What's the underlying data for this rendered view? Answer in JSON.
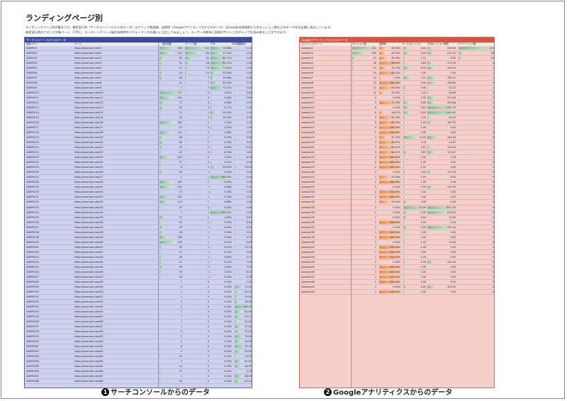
{
  "title": "ランディングページ別",
  "description": [
    "ランディングページ別の集計です。検索実行時（サーチコンソールからのデータ）はクリック数指標、訪問時（Googleアナリティクスからのデータ）はGoogle自然検索からのセッション数などのデータを左右横に表示しています。",
    "検索実行時のクエリと対象ページ、CTRと、ランディングページ後の訪問時のパフォーマンスの違いに注目してみましょう。ユーザーの期待と実際のサイトとのギャップを読み取ることができます。"
  ],
  "search_console": {
    "header": "サーチコンソールからのデータ",
    "columns": [
      "検索クエリ",
      "ページ",
      "表示回数",
      "クリック数",
      "CTR",
      "平均掲載順位"
    ],
    "rows": [
      [
        "SAMPLE1",
        "https://example.com/1",
        "183",
        "133",
        "72.68%",
        "1.11"
      ],
      [
        "SAMPLE2",
        "https://example.com/2",
        "147",
        "84",
        "57.14%",
        "1.00"
      ],
      [
        "SAMPLE3",
        "https://example.com/3",
        "52",
        "42",
        "80.77%",
        "1.00"
      ],
      [
        "SAMPLE4",
        "https://example.com/4",
        "31",
        "28",
        "90.32%",
        "1.00"
      ],
      [
        "SAMPLE5",
        "https://example.com/5",
        "21",
        "15",
        "71.43%",
        "1.00"
      ],
      [
        "SAMPLE6",
        "https://example.com/6",
        "43",
        "10",
        "23.26%",
        "2.35"
      ],
      [
        "SAMPLE7",
        "https://example.com/7",
        "45",
        "7",
        "15.56%",
        "5.40"
      ],
      [
        "SAMPLE8",
        "https://example.com/8",
        "21",
        "7",
        "33.33%",
        "2.14"
      ],
      [
        "SAMPLE9",
        "https://example.com/9",
        "7",
        "5",
        "71.43%",
        "3.42"
      ],
      [
        "SAMPLE10",
        "https://example.com/10",
        "277",
        "5",
        "1.81%",
        "3.62"
      ],
      [
        "SAMPLE11",
        "https://example.com/11",
        "161",
        "4",
        "2.48%",
        "3.89"
      ],
      [
        "SAMPLE12",
        "https://example.com/12",
        "72",
        "4",
        "5.56%",
        "5.97"
      ],
      [
        "SAMPLE13",
        "https://example.com/13",
        "52",
        "3",
        "5.77%",
        "1.00"
      ],
      [
        "SAMPLE14",
        "https://example.com/14",
        "12",
        "3",
        "25.00%",
        "2.25"
      ],
      [
        "SAMPLE15",
        "https://example.com/15",
        "20",
        "3",
        "15.00%",
        "3.70"
      ],
      [
        "SAMPLE16",
        "https://example.com/16",
        "183",
        "2",
        "1.09%",
        "1.15"
      ],
      [
        "SAMPLE17",
        "https://example.com/17",
        "21",
        "2",
        "9.52%",
        "1.00"
      ],
      [
        "SAMPLE18",
        "https://example.com/18",
        "147",
        "2",
        "1.36%",
        "1.01"
      ],
      [
        "SAMPLE19",
        "https://example.com/19",
        "46",
        "2",
        "4.35%",
        "4.59"
      ],
      [
        "SAMPLE20",
        "https://example.com/20",
        "60",
        "2",
        "3.33%",
        "5.47"
      ],
      [
        "SAMPLE21",
        "https://example.com/21",
        "43",
        "2",
        "4.65%",
        "5.51"
      ],
      [
        "SAMPLE22",
        "https://example.com/22",
        "23",
        "2",
        "8.70%",
        "1.61"
      ],
      [
        "SAMPLE23",
        "https://example.com/23",
        "129",
        "2",
        "1.55%",
        "6.16"
      ],
      [
        "SAMPLE24",
        "https://example.com/24",
        "27",
        "2",
        "7.41%",
        "4.26"
      ],
      [
        "SAMPLE25",
        "https://example.com/25",
        "8",
        "2",
        "25.00%",
        "19.00"
      ],
      [
        "SAMPLE26",
        "https://example.com/26",
        "40",
        "1",
        "2.50%",
        "4.18"
      ],
      [
        "SAMPLE27",
        "https://example.com/27",
        "1",
        "1",
        "100.00%",
        "4.00"
      ],
      [
        "SAMPLE28",
        "https://example.com/28",
        "167",
        "1",
        "0.60%",
        "1.18"
      ],
      [
        "SAMPLE29",
        "https://example.com/29",
        "144",
        "1",
        "0.69%",
        "1.15"
      ],
      [
        "SAMPLE30",
        "https://example.com/30",
        "19",
        "1",
        "5.26%",
        "1.00"
      ],
      [
        "SAMPLE31",
        "https://example.com/31",
        "132",
        "1",
        "0.76%",
        "1.00"
      ],
      [
        "SAMPLE32",
        "https://example.com/32",
        "113",
        "1",
        "0.88%",
        "1.00"
      ],
      [
        "SAMPLE33",
        "https://example.com/33",
        "20",
        "1",
        "5.00%",
        "5.00"
      ],
      [
        "SAMPLE34",
        "https://example.com/34",
        "1",
        "1",
        "100.00%",
        "1.00"
      ],
      [
        "SAMPLE35",
        "https://example.com/35",
        "72",
        "1",
        "1.39%",
        "3.67"
      ],
      [
        "SAMPLE36",
        "https://example.com/36",
        "20",
        "1",
        "5.00%",
        "6.20"
      ],
      [
        "SAMPLE37",
        "https://example.com/37",
        "49",
        "1",
        "2.04%",
        "6.33"
      ],
      [
        "SAMPLE38",
        "https://example.com/38",
        "39",
        "1",
        "2.56%",
        "9.10"
      ],
      [
        "SAMPLE39",
        "https://example.com/39",
        "106",
        "1",
        "0.94%",
        "3.76"
      ],
      [
        "SAMPLE40",
        "https://example.com/40",
        "195",
        "1",
        "0.51%",
        "5.63"
      ],
      [
        "SAMPLE41",
        "https://example.com/41",
        "32",
        "1",
        "3.13%",
        "12.13"
      ],
      [
        "SAMPLE42",
        "https://example.com/42",
        "27",
        "1",
        "3.70%",
        "5.00"
      ],
      [
        "SAMPLE43",
        "https://example.com/43",
        "26",
        "1",
        "3.85%",
        "3.77"
      ],
      [
        "SAMPLE44",
        "https://example.com/44",
        "31",
        "1",
        "3.23%",
        "1.00"
      ],
      [
        "SAMPLE45",
        "https://example.com/45",
        "54",
        "1",
        "1.85%",
        "7.50"
      ],
      [
        "SAMPLE46",
        "https://example.com/46",
        "29",
        "1",
        "3.45%",
        "6.72"
      ],
      [
        "SAMPLE47",
        "https://example.com/47",
        "18",
        "1",
        "5.56%",
        "4.78"
      ],
      [
        "SAMPLE48",
        "https://example.com/48",
        "1",
        "0",
        "0.00%",
        "1.00"
      ],
      [
        "SAMPLE49",
        "https://example.com/49",
        "4",
        "0",
        "0.00%",
        "72.25"
      ],
      [
        "SAMPLE50",
        "https://example.com/50",
        "1",
        "0",
        "0.00%",
        "31.00"
      ],
      [
        "SAMPLE51",
        "https://example.com/51",
        "1",
        "0",
        "0.00%",
        "25.00"
      ],
      [
        "SAMPLE52",
        "https://example.com/52",
        "2",
        "0",
        "0.00%",
        "36.00"
      ],
      [
        "SAMPLE53",
        "https://example.com/53",
        "1",
        "0",
        "0.00%",
        "136.00"
      ],
      [
        "SAMPLE54",
        "https://example.com/54",
        "1",
        "0",
        "0.00%",
        "62.00"
      ],
      [
        "SAMPLE55",
        "https://example.com/55",
        "7",
        "0",
        "0.00%",
        "54.71"
      ],
      [
        "SAMPLE56",
        "https://example.com/56",
        "1",
        "0",
        "0.00%",
        "22.00"
      ],
      [
        "SAMPLE57",
        "https://example.com/57",
        "1",
        "0",
        "0.00%",
        "57.00"
      ],
      [
        "SAMPLE58",
        "https://example.com/58",
        "2",
        "0",
        "0.00%",
        "47.50"
      ],
      [
        "SAMPLE59",
        "https://example.com/59",
        "2",
        "0",
        "0.00%",
        "72.00"
      ],
      [
        "SAMPLE60",
        "https://example.com/60",
        "1",
        "0",
        "0.00%",
        "49.00"
      ],
      [
        "SAMPLE61",
        "https://example.com/61",
        "6",
        "0",
        "0.00%",
        "90.75"
      ],
      [
        "SAMPLE62",
        "https://example.com/62",
        "1",
        "0",
        "0.00%",
        "52.00"
      ],
      [
        "SAMPLE63",
        "https://example.com/63",
        "14",
        "0",
        "0.00%",
        "14.00"
      ],
      [
        "SAMPLE64",
        "https://example.com/64",
        "3",
        "0",
        "0.00%",
        "61.67"
      ],
      [
        "SAMPLE65",
        "https://example.com/65",
        "13",
        "0",
        "0.00%",
        "48.92"
      ],
      [
        "SAMPLE66",
        "https://example.com/66",
        "27",
        "0",
        "0.00%",
        "5.74"
      ],
      [
        "SAMPLE67",
        "https://example.com/67",
        "1",
        "0",
        "0.00%",
        "66.00"
      ],
      [
        "SAMPLE68",
        "https://example.com/68",
        "20",
        "0",
        "0.00%",
        "45.24"
      ]
    ]
  },
  "google_analytics": {
    "header": "Googleアナリティクスからのデータ",
    "columns": [
      "ランディングページ",
      "セッション数",
      "直帰率",
      "ページ/セッション",
      "平均セッション時間",
      "コンバージョン数"
    ],
    "rows": [
      [
        "/sample/1",
        "491",
        "26.05%",
        "4.04",
        "209.05",
        "224"
      ],
      [
        "/sample/2",
        "256",
        "25.00%",
        "5.39",
        "271.22",
        "26"
      ],
      [
        "/sample/3",
        "57",
        "35.09%",
        "1.21",
        "6.00",
        "16"
      ],
      [
        "/sample/4",
        "28",
        "96.43%",
        "1.64",
        "210.50",
        "4"
      ],
      [
        "/sample/5",
        "25",
        "33.33%",
        "6.18",
        "296.14",
        "1"
      ],
      [
        "/sample/6",
        "19",
        "68.42%",
        "1.00",
        "0.00",
        "1"
      ],
      [
        "/sample/7",
        "14",
        "7.14%",
        "7.07",
        "335.21",
        "1"
      ],
      [
        "/sample/8",
        "12",
        "100.00%",
        "0.00",
        "338.83",
        "0"
      ],
      [
        "/sample/9",
        "10",
        "60.00%",
        "3.00",
        "32.10",
        "1"
      ],
      [
        "/sample/10",
        "10",
        "20.00%",
        "1.44",
        "56.89",
        "2"
      ],
      [
        "/sample/11",
        "9",
        "0.00%",
        "2.00",
        "313.38",
        "0"
      ],
      [
        "/sample/12",
        "9",
        "77.78%",
        "4.86",
        "294.86",
        "3"
      ],
      [
        "/sample/13",
        "6",
        "0.00%",
        "5.83",
        "1157.33",
        "0"
      ],
      [
        "/sample/14",
        "6",
        "16.67%",
        "6.00",
        "1121.83",
        "0"
      ],
      [
        "/sample/15",
        "5",
        "60.00%",
        "2.00",
        "94.20",
        "1"
      ],
      [
        "/sample/16",
        "5",
        "80.00%",
        "1.40",
        "167.00",
        "1"
      ],
      [
        "/sample/17",
        "5",
        "100.00%",
        "1.00",
        "0.00",
        "1"
      ],
      [
        "/sample/18",
        "5",
        "100.00%",
        "1.00",
        "4.60",
        "0"
      ],
      [
        "/sample/19",
        "3",
        "33.33%",
        "13.00",
        "444.00",
        "0"
      ],
      [
        "/sample/20",
        "3",
        "66.67%",
        "1.33",
        "11.67",
        "1"
      ],
      [
        "/sample/21",
        "3",
        "66.67%",
        "1.67",
        "128.33",
        "1"
      ],
      [
        "/sample/22",
        "3",
        "66.67%",
        "3.67",
        "322.67",
        "0"
      ],
      [
        "/sample/23",
        "2",
        "100.00%",
        "1.00",
        "0.00",
        "1"
      ],
      [
        "/sample/24",
        "2",
        "100.00%",
        "1.00",
        "0.00",
        "0"
      ],
      [
        "/sample/25",
        "2",
        "100.00%",
        "1.00",
        "0.00",
        "0"
      ],
      [
        "/sample/26",
        "2",
        "0.00%",
        "2.50",
        "171.00",
        "0"
      ],
      [
        "/sample/27",
        "2",
        "50.00%",
        "1.50",
        "8.00",
        "0"
      ],
      [
        "/sample/28",
        "2",
        "100.00%",
        "1.00",
        "0.00",
        "0"
      ],
      [
        "/sample/29",
        "2",
        "0.00%",
        "1.00",
        "232.50",
        "0"
      ],
      [
        "/sample/30",
        "2",
        "100.00%",
        "1.00",
        "0.00",
        "0"
      ],
      [
        "/sample/31",
        "2",
        "100.00%",
        "1.00",
        "0.00",
        "0"
      ],
      [
        "/sample/32",
        "2",
        "50.00%",
        "3.00",
        "0.00",
        "0"
      ],
      [
        "/sample/33",
        "2",
        "0.00%",
        "20.00",
        "1021.00",
        "0"
      ],
      [
        "/sample/34",
        "1",
        "0.00%",
        "4.00",
        "878.00",
        "0"
      ],
      [
        "/sample/35",
        "1",
        "0.00%",
        "3.00",
        "17.00",
        "0"
      ],
      [
        "/sample/36",
        "1",
        "100.00%",
        "1.00",
        "0.00",
        "0"
      ],
      [
        "/sample/37",
        "1",
        "0.00%",
        "4.00",
        "932.00",
        "0"
      ],
      [
        "/sample/38",
        "1",
        "100.00%",
        "1.00",
        "0.00",
        "0"
      ],
      [
        "/sample/39",
        "1",
        "100.00%",
        "1.00",
        "0.00",
        "0"
      ],
      [
        "/sample/40",
        "1",
        "0.00%",
        "2.00",
        "14.00",
        "0"
      ],
      [
        "/sample/41",
        "1",
        "100.00%",
        "1.00",
        "0.00",
        "0"
      ],
      [
        "/sample/42",
        "1",
        "100.00%",
        "1.00",
        "0.00",
        "0"
      ],
      [
        "/sample/43",
        "1",
        "100.00%",
        "1.00",
        "0.00",
        "0"
      ],
      [
        "/sample/44",
        "1",
        "0.00%",
        "2.00",
        "232.00",
        "0"
      ],
      [
        "/sample/45",
        "1",
        "100.00%",
        "1.00",
        "0.00",
        "0"
      ],
      [
        "/sample/46",
        "1",
        "100.00%",
        "1.00",
        "0.00",
        "0"
      ],
      [
        "/sample/47",
        "1",
        "100.00%",
        "1.00",
        "0.00",
        "0"
      ],
      [
        "/sample/48",
        "1",
        "100.00%",
        "1.00",
        "0.00",
        "0"
      ],
      [
        "/sample/49",
        "1",
        "0.00%",
        "3.00",
        "328.00",
        "0"
      ],
      [
        "/sample/50",
        "1",
        "100.00%",
        "1.00",
        "0.00",
        "0"
      ]
    ]
  },
  "captions": {
    "left": "サーチコンソールからのデータ",
    "left_num": "1",
    "right": "Googleアナリティクスからのデータ",
    "right_num": "2"
  }
}
